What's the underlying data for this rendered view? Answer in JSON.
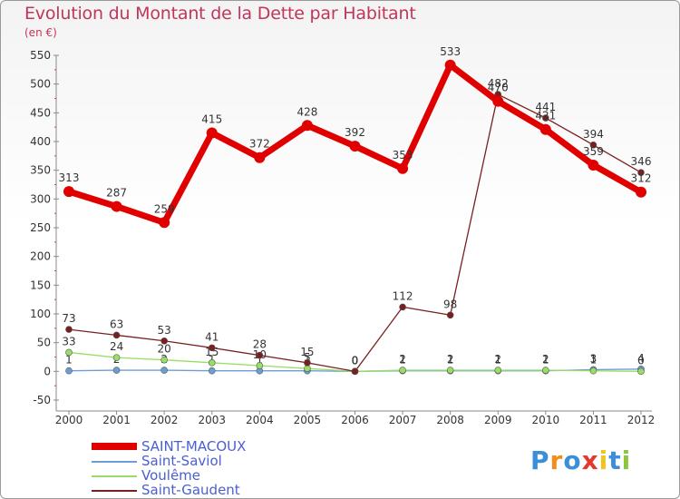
{
  "title": "Evolution du Montant de la Dette par Habitant",
  "unit": "(en €)",
  "logo": "Proxiti",
  "chart_data": {
    "type": "line",
    "x": [
      "2000",
      "2001",
      "2002",
      "2003",
      "2004",
      "2005",
      "2006",
      "2007",
      "2008",
      "2009",
      "2010",
      "2011",
      "2012"
    ],
    "ylim": [
      -50,
      550
    ],
    "yticks": [
      -50,
      0,
      50,
      100,
      150,
      200,
      250,
      300,
      350,
      400,
      450,
      500,
      550
    ],
    "grid": false,
    "legend_position": "bottom-left",
    "series": [
      {
        "name": "SAINT-MACOUX",
        "color": "#e00000",
        "values": [
          313,
          287,
          259,
          415,
          372,
          428,
          392,
          353,
          533,
          470,
          421,
          359,
          312
        ]
      },
      {
        "name": "Saint-Saviol",
        "color": "#6a9fd4",
        "values": [
          1,
          2,
          2,
          1,
          1,
          1,
          0,
          1,
          1,
          1,
          1,
          3,
          4
        ]
      },
      {
        "name": "Voulême",
        "color": "#99dd66",
        "values": [
          33,
          24,
          20,
          15,
          10,
          5,
          0,
          2,
          2,
          2,
          2,
          1,
          0
        ]
      },
      {
        "name": "Saint-Gaudent",
        "color": "#7a1f1f",
        "values": [
          73,
          63,
          53,
          41,
          28,
          15,
          0,
          112,
          98,
          482,
          441,
          394,
          346
        ]
      }
    ]
  }
}
